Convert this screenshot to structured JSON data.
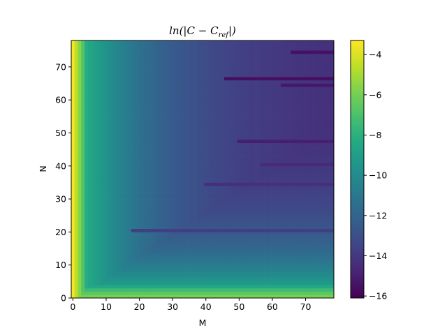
{
  "chart_data": {
    "type": "heatmap",
    "title": "ln(|C − C_ref|)",
    "xlabel": "M",
    "ylabel": "N",
    "x_range": [
      0,
      79
    ],
    "y_range": [
      0,
      78
    ],
    "xlim": [
      -0.5,
      78.5
    ],
    "ylim": [
      0,
      78
    ],
    "x_ticks": [
      0,
      10,
      20,
      30,
      40,
      50,
      60,
      70
    ],
    "y_ticks": [
      0,
      10,
      20,
      30,
      40,
      50,
      60,
      70
    ],
    "colorbar": {
      "colormap": "viridis",
      "vmin": -16.1,
      "vmax": -3.3,
      "ticks": [
        -4,
        -6,
        -8,
        -10,
        -12,
        -14,
        -16
      ]
    },
    "pattern": {
      "description_of_values": "Value rises toward M=0 (~-3.5) and toward small N (~-6 at N=0); decreases to about -14.5 at large M and N.",
      "column_0_value": -3.5,
      "far_value": -14.6,
      "streaks": [
        {
          "n": 66,
          "m_start": 46,
          "value": -15.6
        },
        {
          "n": 47,
          "m_start": 50,
          "value": -15.0
        },
        {
          "n": 34,
          "m_start": 40,
          "value": -14.4
        },
        {
          "n": 20,
          "m_start": 18,
          "value": -13.8
        },
        {
          "n": 64,
          "m_start": 63,
          "value": -15.3
        },
        {
          "n": 74,
          "m_start": 66,
          "value": -15.5
        },
        {
          "n": 40,
          "m_start": 57,
          "value": -14.6
        }
      ]
    }
  }
}
